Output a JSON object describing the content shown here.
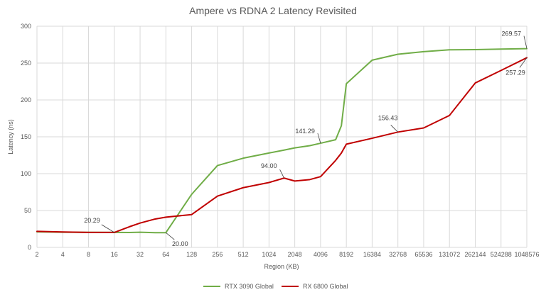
{
  "chart_data": {
    "type": "line",
    "title": "Ampere vs RDNA 2 Latency Revisited",
    "xlabel": "Region (KB)",
    "ylabel": "Latency (ns)",
    "ylim": [
      0,
      300
    ],
    "yticks": [
      0,
      50,
      100,
      150,
      200,
      250,
      300
    ],
    "x_scale": "log2",
    "xticks": [
      2,
      4,
      8,
      16,
      32,
      64,
      128,
      256,
      512,
      1024,
      2048,
      4096,
      8192,
      16384,
      32768,
      65536,
      131072,
      262144,
      524288,
      1048576
    ],
    "grid": true,
    "legend_position": "bottom",
    "series": [
      {
        "name": "RTX 3090 Global",
        "color": "#70AD47",
        "x": [
          2,
          4,
          8,
          16,
          24,
          32,
          48,
          64,
          128,
          256,
          512,
          1024,
          1536,
          2048,
          3072,
          4096,
          6144,
          7168,
          8192,
          16384,
          32768,
          65536,
          131072,
          262144,
          524288,
          1048576
        ],
        "y": [
          21.0,
          20.6,
          20.4,
          20.29,
          20.2,
          20.6,
          20.0,
          20.0,
          72,
          111,
          121,
          128,
          132,
          135,
          138,
          141.29,
          146,
          165,
          222,
          254,
          262,
          265.5,
          268,
          268.3,
          269,
          269.57
        ]
      },
      {
        "name": "RX 6800 Global",
        "color": "#C00000",
        "x": [
          2,
          4,
          8,
          16,
          24,
          32,
          48,
          64,
          128,
          256,
          512,
          1024,
          1536,
          2048,
          3072,
          4096,
          6144,
          7168,
          8192,
          16384,
          32768,
          65536,
          131072,
          262144,
          524288,
          1048576
        ],
        "y": [
          21.8,
          20.9,
          20.3,
          20.29,
          28,
          33,
          38.5,
          41,
          44.5,
          69.5,
          81,
          88,
          94.0,
          90,
          92,
          96,
          118,
          128,
          140,
          148,
          156.43,
          162,
          179,
          223,
          240,
          257.29
        ]
      }
    ],
    "annotations": [
      {
        "label": "20.29",
        "series": "RX 6800 Global",
        "x": 16,
        "y": 20.29
      },
      {
        "label": "20.00",
        "series": "RTX 3090 Global",
        "x": 64,
        "y": 20.0
      },
      {
        "label": "94.00",
        "series": "RX 6800 Global",
        "x": 1536,
        "y": 94.0
      },
      {
        "label": "141.29",
        "series": "RTX 3090 Global",
        "x": 4096,
        "y": 141.29
      },
      {
        "label": "156.43",
        "series": "RX 6800 Global",
        "x": 32768,
        "y": 156.43
      },
      {
        "label": "269.57",
        "series": "RTX 3090 Global",
        "x": 1048576,
        "y": 269.57
      },
      {
        "label": "257.29",
        "series": "RX 6800 Global",
        "x": 1048576,
        "y": 257.29
      }
    ]
  }
}
